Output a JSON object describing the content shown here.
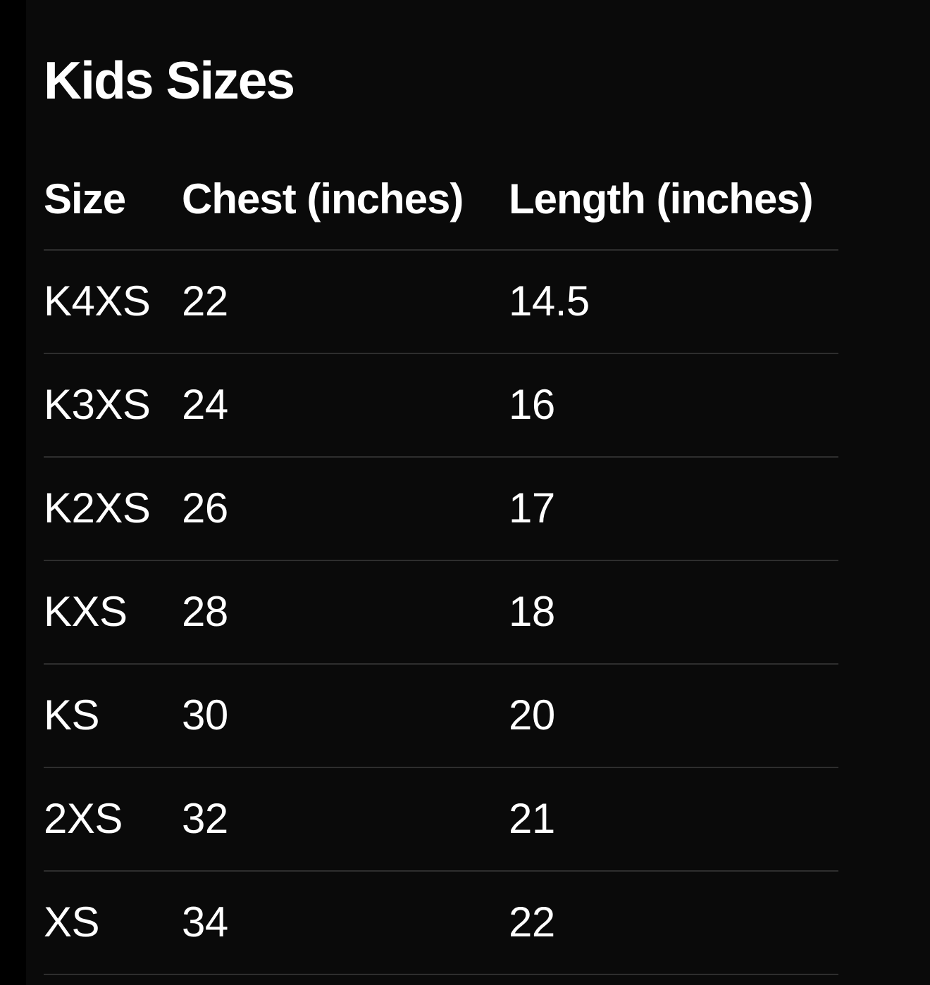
{
  "colors": {
    "background": "#000000",
    "card_background": "#0a0a0a",
    "divider": "#2e2e2e",
    "text": "#ffffff"
  },
  "chart_data": {
    "type": "table",
    "title": "Kids Sizes",
    "columns": [
      "Size",
      "Chest (inches)",
      "Length (inches)"
    ],
    "rows": [
      [
        "K4XS",
        "22",
        "14.5"
      ],
      [
        "K3XS",
        "24",
        "16"
      ],
      [
        "K2XS",
        "26",
        "17"
      ],
      [
        "KXS",
        "28",
        "18"
      ],
      [
        "KS",
        "30",
        "20"
      ],
      [
        "2XS",
        "32",
        "21"
      ],
      [
        "XS",
        "34",
        "22"
      ]
    ]
  }
}
